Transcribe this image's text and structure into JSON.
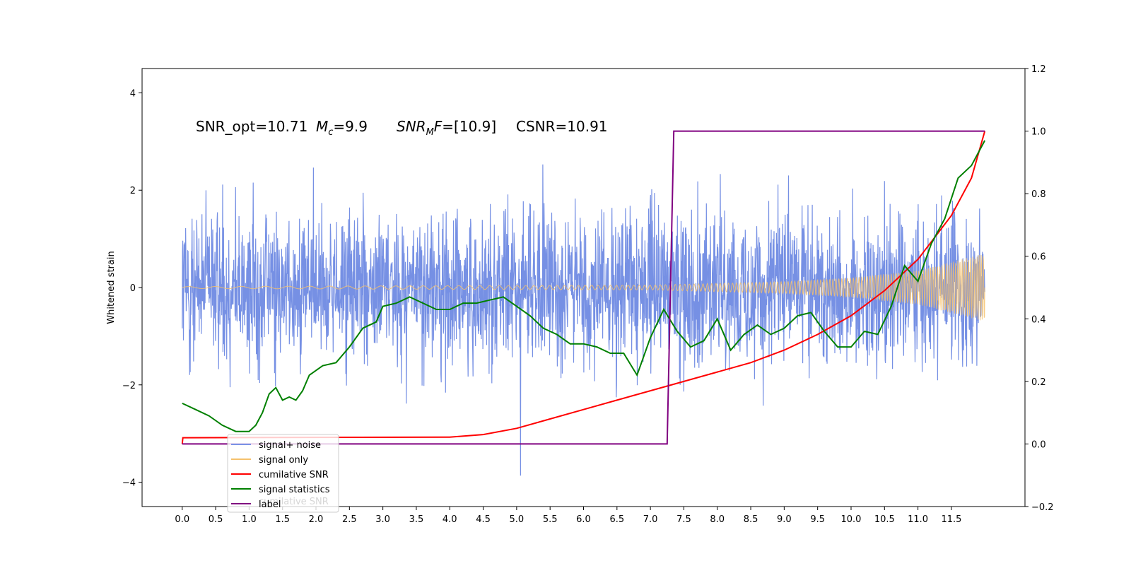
{
  "chart_data": {
    "type": "line",
    "title": "",
    "xlabel": "",
    "ylabel": "Whitened strain",
    "xlim": [
      -0.6,
      12.6
    ],
    "ylim": [
      -4.5,
      4.5
    ],
    "y2lim": [
      -0.2,
      1.2
    ],
    "x_ticks": [
      0.0,
      0.5,
      1.0,
      1.5,
      2.0,
      2.5,
      3.0,
      3.5,
      4.0,
      4.5,
      5.0,
      5.5,
      6.0,
      6.5,
      7.0,
      7.5,
      8.0,
      8.5,
      9.0,
      9.5,
      10.0,
      10.5,
      11.0,
      11.5
    ],
    "x_tick_labels": [
      "0.0",
      "0.5",
      "1.0",
      "1.5",
      "2.0",
      "2.5",
      "3.0",
      "3.5",
      "4.0",
      "4.5",
      "5.0",
      "5.5",
      "6.0",
      "6.5",
      "7.0",
      "7.5",
      "8.0",
      "8.5",
      "9.0",
      "9.5",
      "10.0",
      "10.5",
      "11.0",
      "11.5"
    ],
    "y_ticks": [
      -4,
      -2,
      0,
      2,
      4
    ],
    "y_tick_labels": [
      "−4",
      "−2",
      "0",
      "2",
      "4"
    ],
    "y2_ticks": [
      -0.2,
      0.0,
      0.2,
      0.4,
      0.6,
      0.8,
      1.0,
      1.2
    ],
    "y2_tick_labels": [
      "−0.2",
      "0.0",
      "0.2",
      "0.4",
      "0.6",
      "0.8",
      "1.0",
      "1.2"
    ],
    "grid": false,
    "legend_position": "lower-left",
    "annotations": {
      "snr_opt": "SNR_opt=10.71",
      "mc_var": "M",
      "mc_sub": "c",
      "mc_val": "=9.9",
      "snrmf_var": "SNR",
      "snrmf_sub": "M",
      "snrmf_var2": "F",
      "snrmf_val": "=[10.9]",
      "csnr": "CSNR=10.91"
    },
    "legend": [
      {
        "label": "signal+ noise",
        "color": "#7b93e6"
      },
      {
        "label": "signal only",
        "color": "#f5c16c"
      },
      {
        "label": "cumilative SNR",
        "color": "#ff0000"
      },
      {
        "label": "signal statistics",
        "color": "#008000"
      },
      {
        "label": "label",
        "color": "#800080"
      }
    ],
    "legend_ghost": "cumilative SNR",
    "series": [
      {
        "name": "signal+ noise",
        "axis": "left",
        "color": "#6f8ae3",
        "description": "whitened data, broadband noise roughly within ±2.5 with spikes to ±4",
        "envelope": 2.4,
        "x_range": [
          0.0,
          12.0
        ]
      },
      {
        "name": "signal only",
        "axis": "left",
        "color": "#f5c16c",
        "amplitude_points": [
          [
            0.0,
            0.02
          ],
          [
            7.0,
            0.05
          ],
          [
            9.0,
            0.12
          ],
          [
            10.0,
            0.2
          ],
          [
            11.0,
            0.35
          ],
          [
            12.0,
            0.7
          ]
        ],
        "x_range": [
          0.0,
          12.0
        ]
      },
      {
        "name": "cumilative SNR",
        "axis": "right",
        "color": "#ff0000",
        "points": [
          [
            0.0,
            0.0
          ],
          [
            0.01,
            0.02
          ],
          [
            4.0,
            0.022
          ],
          [
            4.5,
            0.03
          ],
          [
            5.0,
            0.05
          ],
          [
            5.5,
            0.08
          ],
          [
            6.0,
            0.11
          ],
          [
            6.5,
            0.14
          ],
          [
            7.0,
            0.17
          ],
          [
            7.5,
            0.2
          ],
          [
            8.0,
            0.23
          ],
          [
            8.5,
            0.26
          ],
          [
            9.0,
            0.3
          ],
          [
            9.5,
            0.35
          ],
          [
            10.0,
            0.41
          ],
          [
            10.5,
            0.49
          ],
          [
            11.0,
            0.59
          ],
          [
            11.5,
            0.73
          ],
          [
            11.8,
            0.85
          ],
          [
            12.0,
            1.0
          ]
        ]
      },
      {
        "name": "signal statistics",
        "axis": "right",
        "color": "#008000",
        "points": [
          [
            0.0,
            0.13
          ],
          [
            0.2,
            0.11
          ],
          [
            0.4,
            0.09
          ],
          [
            0.6,
            0.06
          ],
          [
            0.8,
            0.04
          ],
          [
            1.0,
            0.04
          ],
          [
            1.1,
            0.06
          ],
          [
            1.2,
            0.1
          ],
          [
            1.3,
            0.16
          ],
          [
            1.4,
            0.18
          ],
          [
            1.5,
            0.14
          ],
          [
            1.6,
            0.15
          ],
          [
            1.7,
            0.14
          ],
          [
            1.8,
            0.17
          ],
          [
            1.9,
            0.22
          ],
          [
            2.1,
            0.25
          ],
          [
            2.3,
            0.26
          ],
          [
            2.5,
            0.31
          ],
          [
            2.7,
            0.37
          ],
          [
            2.9,
            0.39
          ],
          [
            3.0,
            0.44
          ],
          [
            3.2,
            0.45
          ],
          [
            3.4,
            0.47
          ],
          [
            3.6,
            0.45
          ],
          [
            3.8,
            0.43
          ],
          [
            4.0,
            0.43
          ],
          [
            4.2,
            0.45
          ],
          [
            4.4,
            0.45
          ],
          [
            4.6,
            0.46
          ],
          [
            4.8,
            0.47
          ],
          [
            5.0,
            0.44
          ],
          [
            5.2,
            0.41
          ],
          [
            5.4,
            0.37
          ],
          [
            5.6,
            0.35
          ],
          [
            5.8,
            0.32
          ],
          [
            6.0,
            0.32
          ],
          [
            6.2,
            0.31
          ],
          [
            6.4,
            0.29
          ],
          [
            6.6,
            0.29
          ],
          [
            6.8,
            0.22
          ],
          [
            7.0,
            0.34
          ],
          [
            7.2,
            0.43
          ],
          [
            7.4,
            0.36
          ],
          [
            7.6,
            0.31
          ],
          [
            7.8,
            0.33
          ],
          [
            8.0,
            0.4
          ],
          [
            8.2,
            0.3
          ],
          [
            8.4,
            0.35
          ],
          [
            8.6,
            0.38
          ],
          [
            8.8,
            0.35
          ],
          [
            9.0,
            0.37
          ],
          [
            9.2,
            0.41
          ],
          [
            9.4,
            0.42
          ],
          [
            9.6,
            0.36
          ],
          [
            9.8,
            0.31
          ],
          [
            10.0,
            0.31
          ],
          [
            10.2,
            0.36
          ],
          [
            10.4,
            0.35
          ],
          [
            10.6,
            0.44
          ],
          [
            10.8,
            0.57
          ],
          [
            11.0,
            0.52
          ],
          [
            11.2,
            0.64
          ],
          [
            11.4,
            0.72
          ],
          [
            11.6,
            0.85
          ],
          [
            11.8,
            0.89
          ],
          [
            12.0,
            0.97
          ]
        ]
      },
      {
        "name": "label",
        "axis": "right",
        "color": "#800080",
        "points": [
          [
            0.0,
            0.0
          ],
          [
            7.25,
            0.0
          ],
          [
            7.35,
            1.0
          ],
          [
            12.0,
            1.0
          ]
        ]
      }
    ]
  }
}
